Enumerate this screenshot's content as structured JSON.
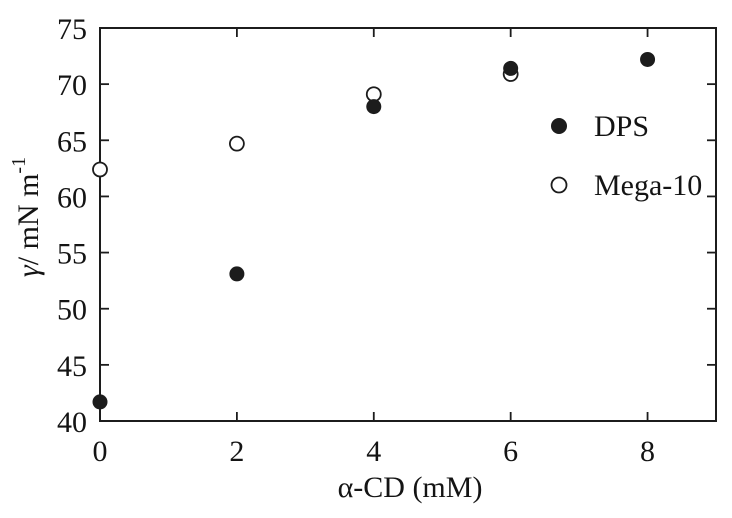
{
  "figure": {
    "background": "#ffffff",
    "ink": "#1c1c1c"
  },
  "chart_data": {
    "type": "scatter",
    "title": "",
    "xlabel": "α-CD (mM)",
    "ylabel": "γ/ mN m⁻¹",
    "ylabel_parts": [
      {
        "text": "γ",
        "style": "italic"
      },
      {
        "text": "/ mN m",
        "style": "normal"
      },
      {
        "text": "-1",
        "style": "sup"
      }
    ],
    "xlim": [
      0,
      9
    ],
    "ylim": [
      40,
      75
    ],
    "xticks": [
      0,
      2,
      4,
      6,
      8
    ],
    "yticks": [
      40,
      45,
      50,
      55,
      60,
      65,
      70,
      75
    ],
    "grid": false,
    "legend_position": "inside-right",
    "legend": [
      {
        "label": "DPS",
        "marker": "filled-circle"
      },
      {
        "label": "Mega-10",
        "marker": "open-circle"
      }
    ],
    "series": [
      {
        "name": "DPS",
        "marker": "filled-circle",
        "points": [
          [
            0,
            41.7
          ],
          [
            2,
            53.1
          ],
          [
            4,
            68.0
          ],
          [
            6,
            71.4
          ],
          [
            8,
            72.2
          ]
        ]
      },
      {
        "name": "Mega-10",
        "marker": "open-circle",
        "points": [
          [
            0,
            62.4
          ],
          [
            2,
            64.7
          ],
          [
            4,
            69.1
          ],
          [
            6,
            70.9
          ]
        ]
      }
    ]
  }
}
